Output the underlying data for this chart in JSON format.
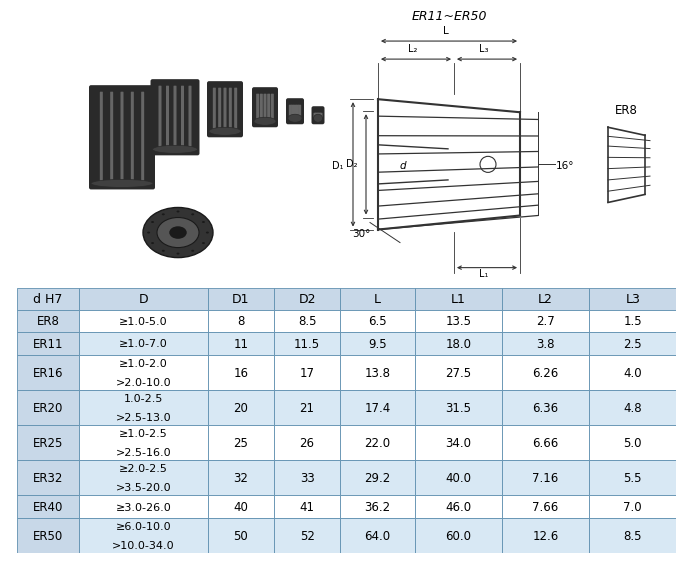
{
  "headers": [
    "d H7",
    "D",
    "D1",
    "D2",
    "L",
    "L1",
    "L2",
    "L3"
  ],
  "rows": [
    [
      "ER8",
      "≥1.0-5.0",
      "8",
      "8.5",
      "6.5",
      "13.5",
      "2.7",
      "1.5"
    ],
    [
      "ER11",
      "≥1.0-7.0",
      "11",
      "11.5",
      "9.5",
      "18.0",
      "3.8",
      "2.5"
    ],
    [
      "ER16",
      "≥1.0-2.0\n>2.0-10.0",
      "16",
      "17",
      "13.8",
      "27.5",
      "6.26",
      "4.0"
    ],
    [
      "ER20",
      "1.0-2.5\n>2.5-13.0",
      "20",
      "21",
      "17.4",
      "31.5",
      "6.36",
      "4.8"
    ],
    [
      "ER25",
      "≥1.0-2.5\n>2.5-16.0",
      "25",
      "26",
      "22.0",
      "34.0",
      "6.66",
      "5.0"
    ],
    [
      "ER32",
      "≥2.0-2.5\n>3.5-20.0",
      "32",
      "33",
      "29.2",
      "40.0",
      "7.16",
      "5.5"
    ],
    [
      "ER40",
      "≥3.0-26.0",
      "40",
      "41",
      "36.2",
      "46.0",
      "7.66",
      "7.0"
    ],
    [
      "ER50",
      "≥6.0-10.0\n>10.0-34.0",
      "50",
      "52",
      "64.0",
      "60.0",
      "12.6",
      "8.5"
    ]
  ],
  "header_bg": "#c8d8e8",
  "row_bg_light": "#d8e8f4",
  "row_bg_white": "#ffffff",
  "border_color": "#6090b0",
  "text_color": "#000000",
  "header_fontsize": 9,
  "cell_fontsize": 8.5,
  "diagram_label": "ER11~ER50",
  "er8_label": "ER8"
}
